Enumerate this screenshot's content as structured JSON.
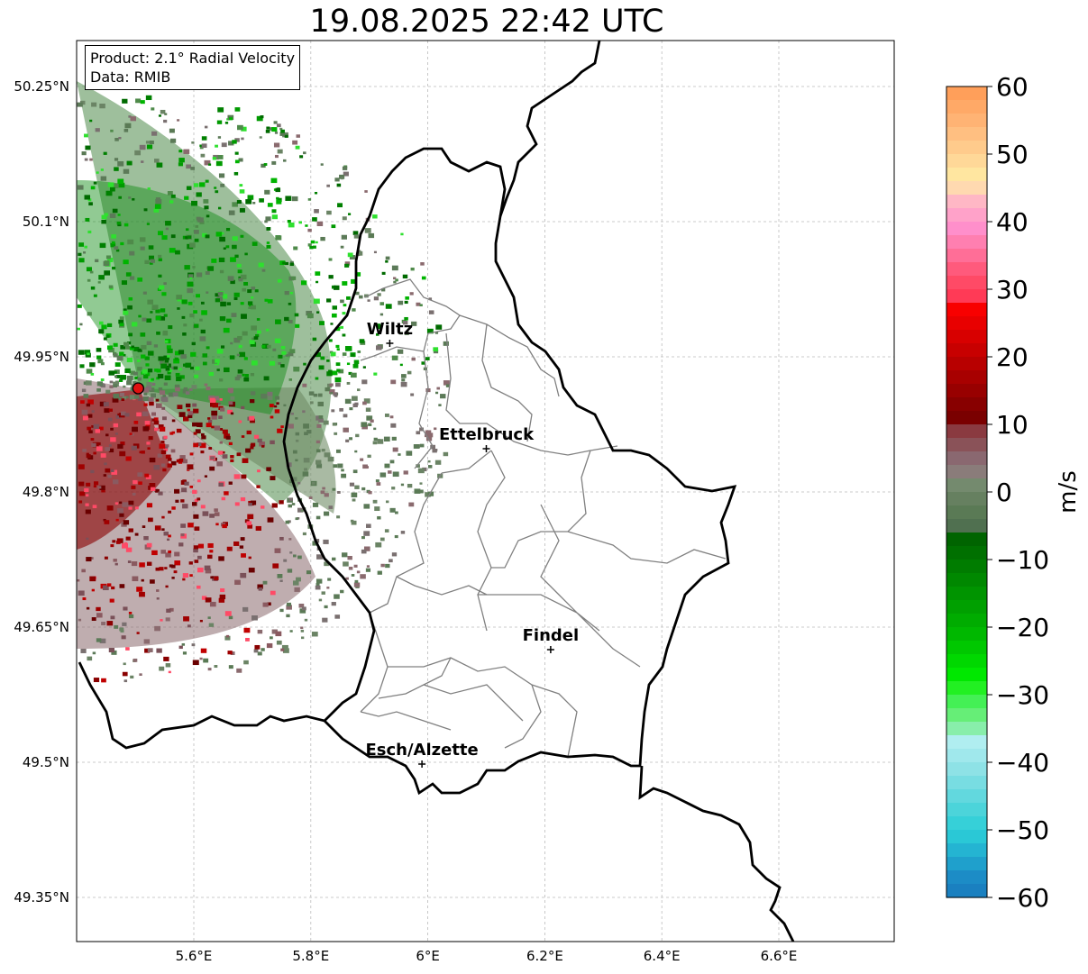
{
  "title": "19.08.2025 22:42 UTC",
  "info": {
    "product_line": "Product: 2.1° Radial Velocity",
    "data_line": "Data: RMIB"
  },
  "map": {
    "lon_range": [
      5.4,
      6.8
    ],
    "lat_range": [
      49.3,
      50.3
    ],
    "x_ticks": [
      {
        "value": 5.6,
        "label": "5.6°E"
      },
      {
        "value": 5.8,
        "label": "5.8°E"
      },
      {
        "value": 6.0,
        "label": "6°E"
      },
      {
        "value": 6.2,
        "label": "6.2°E"
      },
      {
        "value": 6.4,
        "label": "6.4°E"
      },
      {
        "value": 6.6,
        "label": "6.6°E"
      }
    ],
    "y_ticks": [
      {
        "value": 50.25,
        "label": "50.25°N"
      },
      {
        "value": 50.1,
        "label": "50.1°N"
      },
      {
        "value": 49.95,
        "label": "49.95°N"
      },
      {
        "value": 49.8,
        "label": "49.8°N"
      },
      {
        "value": 49.65,
        "label": "49.65°N"
      },
      {
        "value": 49.5,
        "label": "49.5°N"
      },
      {
        "value": 49.35,
        "label": "49.35°N"
      }
    ],
    "cities": [
      {
        "name": "Wiltz",
        "lon": 5.935,
        "lat": 49.965
      },
      {
        "name": "Ettelbruck",
        "lon": 6.1,
        "lat": 49.848
      },
      {
        "name": "Findel",
        "lon": 6.21,
        "lat": 49.625
      },
      {
        "name": "Esch/Alzette",
        "lon": 5.99,
        "lat": 49.498
      }
    ],
    "radar_site": {
      "lon": 5.505,
      "lat": 49.915
    },
    "grid": true
  },
  "colorbar": {
    "label": "m/s",
    "range": [
      -60,
      60
    ],
    "ticks": [
      {
        "value": 60,
        "label": "60"
      },
      {
        "value": 50,
        "label": "50"
      },
      {
        "value": 40,
        "label": "40"
      },
      {
        "value": 30,
        "label": "30"
      },
      {
        "value": 20,
        "label": "20"
      },
      {
        "value": 10,
        "label": "10"
      },
      {
        "value": 0,
        "label": "0"
      },
      {
        "value": -10,
        "label": "−10"
      },
      {
        "value": -20,
        "label": "−20"
      },
      {
        "value": -30,
        "label": "−30"
      },
      {
        "value": -40,
        "label": "−40"
      },
      {
        "value": -50,
        "label": "−50"
      },
      {
        "value": -60,
        "label": "−60"
      }
    ],
    "colors_top_to_bottom": [
      "#ff9f5a",
      "#ffa967",
      "#ffb374",
      "#ffbf81",
      "#ffcb8c",
      "#ffd898",
      "#ffe6a0",
      "#ffd9b0",
      "#ffb7c5",
      "#ffa2c9",
      "#ff8fcb",
      "#ff7fb0",
      "#ff6e97",
      "#ff5a7c",
      "#ff4a66",
      "#ff3a56",
      "#f80000",
      "#e80000",
      "#d80000",
      "#c80000",
      "#b80000",
      "#a80000",
      "#980000",
      "#880000",
      "#7a0000",
      "#8a3a40",
      "#8a5258",
      "#8a6870",
      "#8a7c7a",
      "#748a6e",
      "#668060",
      "#5a7a55",
      "#507050",
      "#006400",
      "#007000",
      "#007c00",
      "#008800",
      "#009400",
      "#00a000",
      "#00ac00",
      "#00b800",
      "#00c800",
      "#00d800",
      "#00e800",
      "#22f022",
      "#44f055",
      "#66ee77",
      "#88eeaa",
      "#b0eef0",
      "#a0e8ec",
      "#8ee2e6",
      "#78dde2",
      "#62d8de",
      "#4cd4da",
      "#36d0d8",
      "#2ac8d6",
      "#24b4d2",
      "#1fa0cc",
      "#1c8cc6",
      "#1a80c0"
    ]
  }
}
